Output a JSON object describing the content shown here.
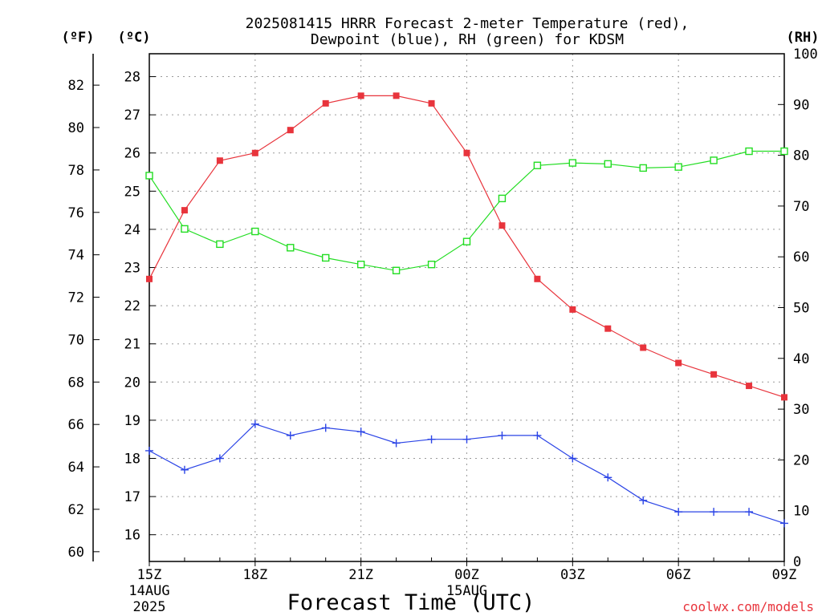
{
  "chart_data": {
    "type": "line",
    "title_line1": "2025081415 HRRR Forecast 2-meter Temperature (red),",
    "title_line2": "Dewpoint (blue), RH (green) for KDSM",
    "xlabel": "Forecast Time (UTC)",
    "left_outer_unit": "(ºF)",
    "left_inner_unit": "(ºC)",
    "right_unit": "(RH)",
    "watermark": "coolwx.com/models",
    "x_hours": [
      0,
      1,
      2,
      3,
      4,
      5,
      6,
      7,
      8,
      9,
      10,
      11,
      12,
      13,
      14,
      15,
      16,
      17,
      18
    ],
    "x_ticks": [
      {
        "hour": 0,
        "label": "15Z",
        "sub1": "14AUG",
        "sub2": "2025"
      },
      {
        "hour": 3,
        "label": "18Z",
        "sub1": "",
        "sub2": ""
      },
      {
        "hour": 6,
        "label": "21Z",
        "sub1": "",
        "sub2": ""
      },
      {
        "hour": 9,
        "label": "00Z",
        "sub1": "15AUG",
        "sub2": ""
      },
      {
        "hour": 12,
        "label": "03Z",
        "sub1": "",
        "sub2": ""
      },
      {
        "hour": 15,
        "label": "06Z",
        "sub1": "",
        "sub2": ""
      },
      {
        "hour": 18,
        "label": "09Z",
        "sub1": "",
        "sub2": ""
      }
    ],
    "y_celsius_range": [
      15.3,
      28.6
    ],
    "y_celsius_ticks": [
      16,
      17,
      18,
      19,
      20,
      21,
      22,
      23,
      24,
      25,
      26,
      27,
      28
    ],
    "y_fahrenheit_ticks": [
      60,
      62,
      64,
      66,
      68,
      70,
      72,
      74,
      76,
      78,
      80,
      82
    ],
    "y_rh_range": [
      0,
      100
    ],
    "y_rh_ticks": [
      0,
      10,
      20,
      30,
      40,
      50,
      60,
      70,
      80,
      90,
      100
    ],
    "grid": true,
    "series": [
      {
        "name": "Temperature",
        "axis": "celsius",
        "color": "#e8343c",
        "marker": "filled-square",
        "values": [
          22.7,
          24.5,
          25.8,
          26.0,
          26.6,
          27.3,
          27.5,
          27.5,
          27.3,
          26.0,
          24.1,
          22.7,
          21.9,
          21.4,
          20.9,
          20.5,
          20.2,
          19.9,
          19.6
        ]
      },
      {
        "name": "Dewpoint",
        "axis": "celsius",
        "color": "#2b44e6",
        "marker": "plus",
        "values": [
          18.2,
          17.7,
          18.0,
          18.9,
          18.6,
          18.8,
          18.7,
          18.4,
          18.5,
          18.5,
          18.6,
          18.6,
          18.0,
          17.5,
          16.9,
          16.6,
          16.6,
          16.6,
          16.3
        ]
      },
      {
        "name": "RH",
        "axis": "rh",
        "color": "#22dd22",
        "marker": "open-square",
        "values": [
          76,
          65.5,
          62.5,
          65,
          61.8,
          59.8,
          58.5,
          57.3,
          58.5,
          63,
          71.5,
          78,
          78.5,
          78.3,
          77.5,
          77.7,
          79,
          80.8,
          80.8
        ]
      }
    ]
  }
}
